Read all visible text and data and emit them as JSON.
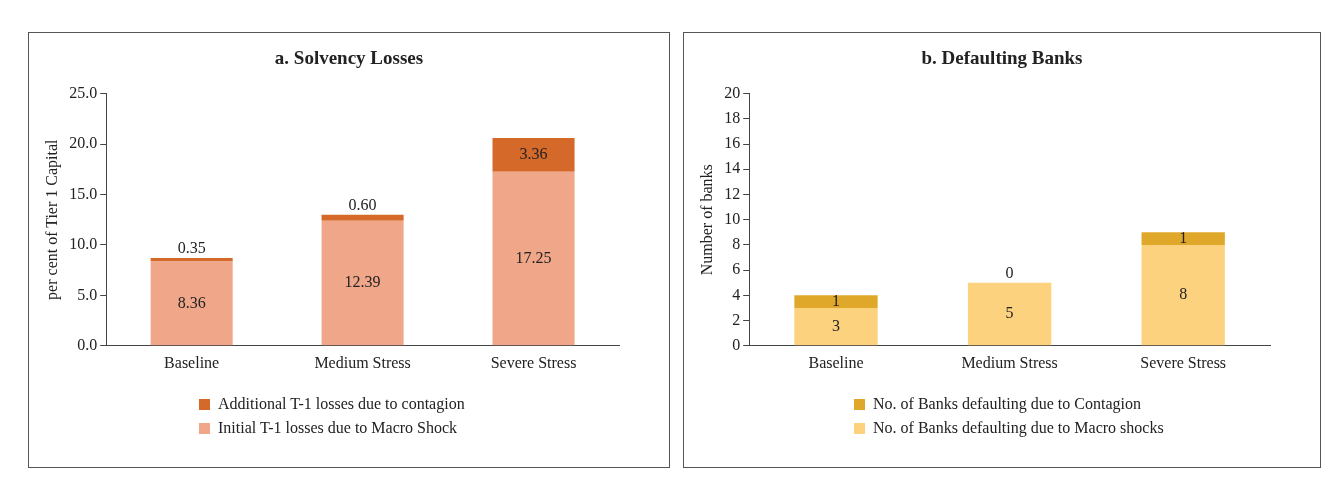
{
  "chart_data": [
    {
      "type": "bar",
      "stacked": true,
      "title": "a. Solvency Losses",
      "ylabel": "per cent of Tier 1 Capital",
      "categories": [
        "Baseline",
        "Medium Stress",
        "Severe Stress"
      ],
      "series": [
        {
          "name": "Initial T-1 losses due to Macro Shock",
          "color": "#f0a688",
          "values": [
            8.36,
            12.39,
            17.25
          ],
          "value_labels": [
            "8.36",
            "12.39",
            "17.25"
          ]
        },
        {
          "name": "Additional T-1 losses due to contagion",
          "color": "#d4692a",
          "values": [
            0.35,
            0.6,
            3.36
          ],
          "value_labels": [
            "0.35",
            "0.60",
            "3.36"
          ]
        }
      ],
      "ylim": [
        0,
        25
      ],
      "yticks": [
        {
          "value": 0,
          "label": "0.0"
        },
        {
          "value": 5,
          "label": "5.0"
        },
        {
          "value": 10,
          "label": "10.0"
        },
        {
          "value": 15,
          "label": "15.0"
        },
        {
          "value": 20,
          "label": "20.0"
        },
        {
          "value": 25,
          "label": "25.0"
        }
      ],
      "legend": "bottom",
      "grid": false
    },
    {
      "type": "bar",
      "stacked": true,
      "title": "b. Defaulting Banks",
      "ylabel": "Number of banks",
      "categories": [
        "Baseline",
        "Medium Stress",
        "Severe Stress"
      ],
      "series": [
        {
          "name": "No. of Banks defaulting due to Macro shocks",
          "color": "#fdd27f",
          "values": [
            3,
            5,
            8
          ]
        },
        {
          "name": "No. of Banks defaulting due to Contagion",
          "color": "#e0a82a",
          "values": [
            1,
            0,
            1
          ]
        }
      ],
      "ylim": [
        0,
        20
      ],
      "yticks": [
        0,
        2,
        4,
        6,
        8,
        10,
        12,
        14,
        16,
        18,
        20
      ],
      "legend": "bottom",
      "grid": false,
      "data_labels": true
    }
  ]
}
